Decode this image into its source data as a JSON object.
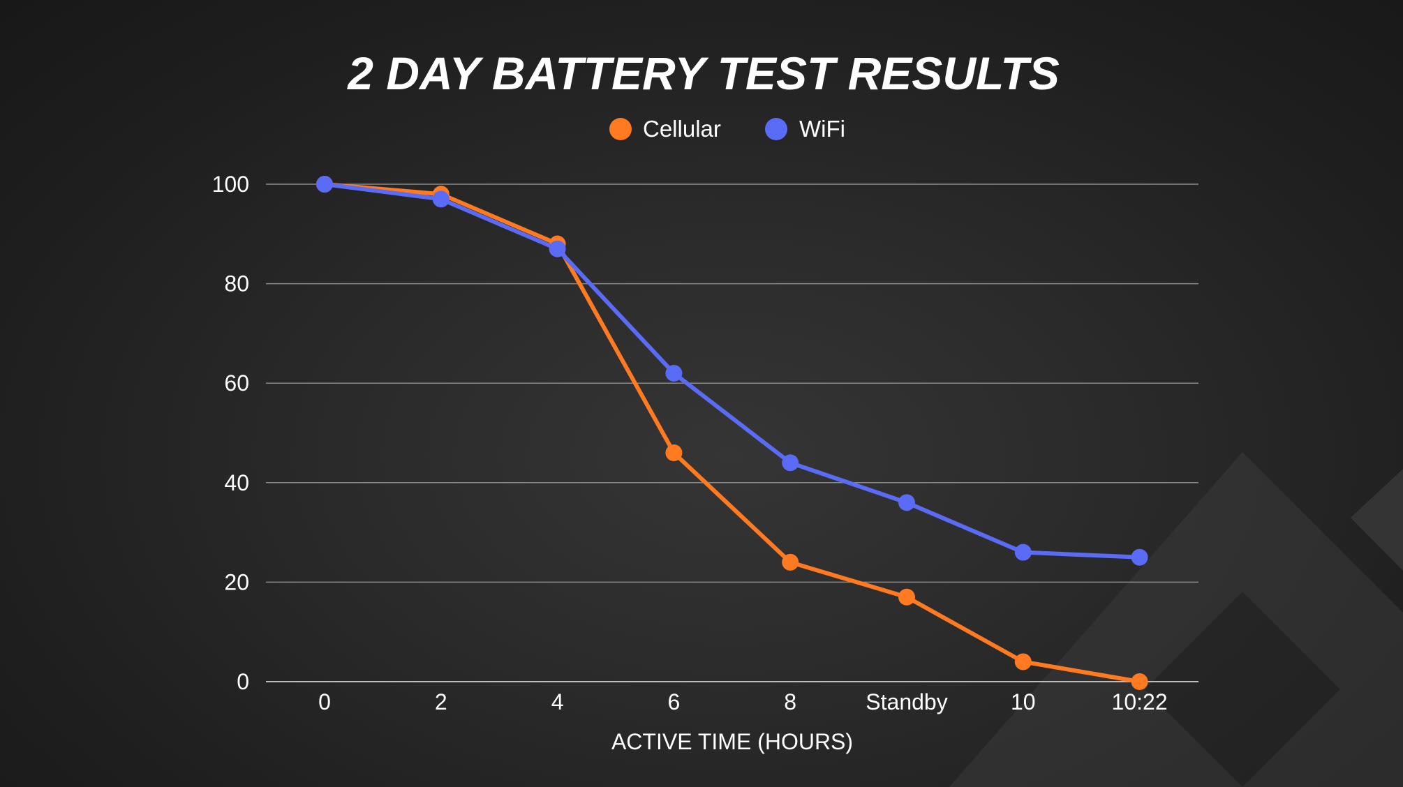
{
  "colors": {
    "cellular": "#ff7a21",
    "wifi": "#5a6bf5",
    "grid": "#8a8a8a",
    "text": "#ffffff",
    "decor": "#3a3a3a"
  },
  "chart_data": {
    "type": "line",
    "title": "2 DAY BATTERY TEST RESULTS",
    "xlabel": "ACTIVE TIME (HOURS)",
    "ylabel": "",
    "categories": [
      "0",
      "2",
      "4",
      "6",
      "8",
      "Standby",
      "10",
      "10:22"
    ],
    "ylim": [
      0,
      100
    ],
    "yticks": [
      0,
      20,
      40,
      60,
      80,
      100
    ],
    "grid": true,
    "legend": "top-center",
    "series": [
      {
        "name": "Cellular",
        "values": [
          100,
          98,
          88,
          46,
          24,
          17,
          4,
          0
        ]
      },
      {
        "name": "WiFi",
        "values": [
          100,
          97,
          87,
          62,
          44,
          36,
          26,
          25
        ]
      }
    ]
  }
}
